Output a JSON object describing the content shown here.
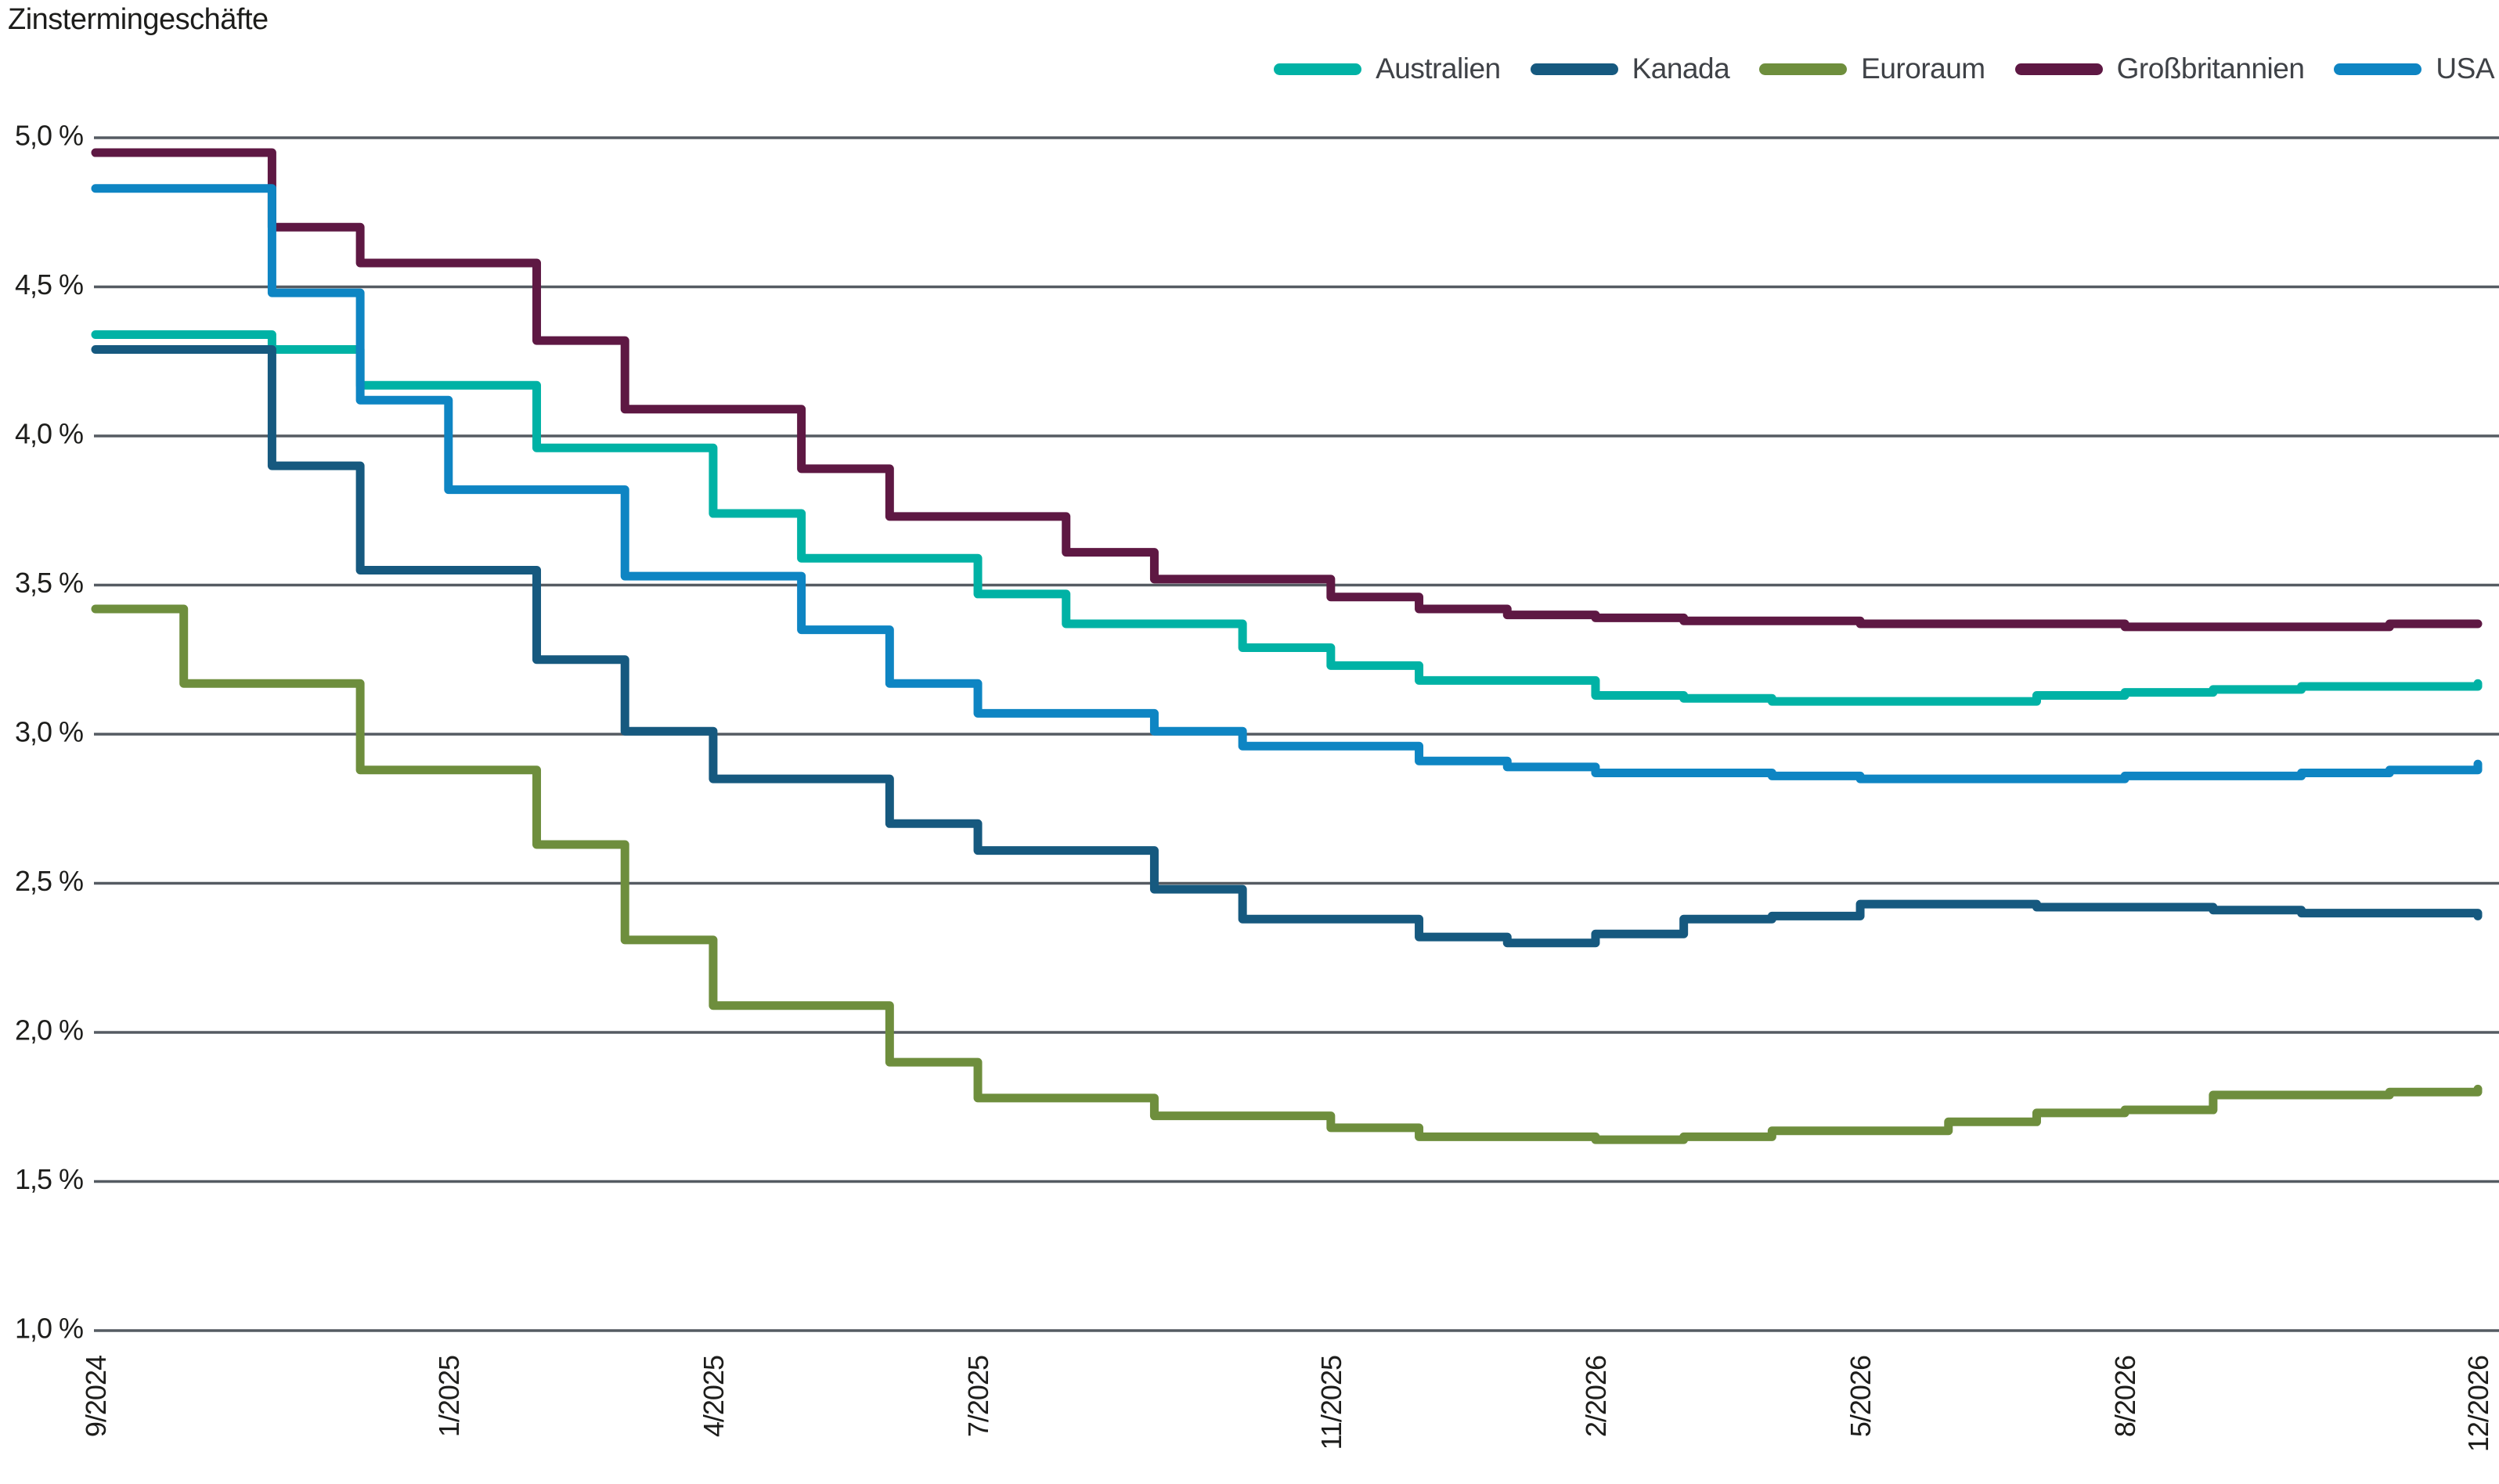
{
  "title": "Zinstermingeschäfte",
  "chart_data": {
    "type": "line",
    "variant": "step-after",
    "title": "Zinstermingeschäfte",
    "xlabel": "",
    "ylabel": "",
    "unit": "%",
    "grid": true,
    "grid_color": "#555b62",
    "background_color": "#ffffff",
    "legend_position": "top-right",
    "x_monthly": [
      "9/2024",
      "10/2024",
      "11/2024",
      "12/2024",
      "1/2025",
      "2/2025",
      "3/2025",
      "4/2025",
      "5/2025",
      "6/2025",
      "7/2025",
      "8/2025",
      "9/2025",
      "10/2025",
      "11/2025",
      "12/2025",
      "1/2026",
      "2/2026",
      "3/2026",
      "4/2026",
      "5/2026",
      "6/2026",
      "7/2026",
      "8/2026",
      "9/2026",
      "10/2026",
      "11/2026",
      "12/2026"
    ],
    "x_ticks": [
      {
        "index": 0,
        "label": "9/2024"
      },
      {
        "index": 4,
        "label": "1/2025"
      },
      {
        "index": 7,
        "label": "4/2025"
      },
      {
        "index": 10,
        "label": "7/2025"
      },
      {
        "index": 14,
        "label": "11/2025"
      },
      {
        "index": 17,
        "label": "2/2026"
      },
      {
        "index": 20,
        "label": "5/2026"
      },
      {
        "index": 23,
        "label": "8/2026"
      },
      {
        "index": 27,
        "label": "12/2026"
      }
    ],
    "y_axis": {
      "min": 1.0,
      "max": 5.0,
      "step": 0.5,
      "ticks": [
        {
          "value": 5.0,
          "label": "5,0 %"
        },
        {
          "value": 4.5,
          "label": "4,5 %"
        },
        {
          "value": 4.0,
          "label": "4,0 %"
        },
        {
          "value": 3.5,
          "label": "3,5 %"
        },
        {
          "value": 3.0,
          "label": "3,0 %"
        },
        {
          "value": 2.5,
          "label": "2,5 %"
        },
        {
          "value": 2.0,
          "label": "2,0 %"
        },
        {
          "value": 1.5,
          "label": "1,5 %"
        },
        {
          "value": 1.0,
          "label": "1,0 %"
        }
      ]
    },
    "series": [
      {
        "name": "Australien",
        "color": "#00B2A5",
        "values": [
          4.34,
          4.34,
          4.29,
          4.17,
          4.17,
          3.96,
          3.96,
          3.74,
          3.59,
          3.59,
          3.47,
          3.37,
          3.37,
          3.29,
          3.23,
          3.18,
          3.18,
          3.13,
          3.12,
          3.11,
          3.11,
          3.11,
          3.13,
          3.14,
          3.15,
          3.16,
          3.16,
          3.17
        ]
      },
      {
        "name": "Kanada",
        "color": "#16597F",
        "values": [
          4.29,
          4.29,
          3.9,
          3.55,
          3.55,
          3.25,
          3.01,
          2.85,
          2.85,
          2.7,
          2.61,
          2.61,
          2.48,
          2.38,
          2.38,
          2.32,
          2.3,
          2.33,
          2.38,
          2.39,
          2.43,
          2.43,
          2.42,
          2.42,
          2.41,
          2.4,
          2.4,
          2.39
        ]
      },
      {
        "name": "Euroraum",
        "color": "#6E8E3D",
        "values": [
          3.42,
          3.17,
          3.17,
          2.88,
          2.88,
          2.63,
          2.31,
          2.09,
          2.09,
          1.9,
          1.78,
          1.78,
          1.72,
          1.72,
          1.68,
          1.65,
          1.65,
          1.64,
          1.65,
          1.67,
          1.67,
          1.7,
          1.73,
          1.74,
          1.79,
          1.79,
          1.8,
          1.81
        ]
      },
      {
        "name": "Großbritannien",
        "color": "#5E1843",
        "values": [
          4.95,
          4.95,
          4.7,
          4.58,
          4.58,
          4.32,
          4.09,
          4.09,
          3.89,
          3.73,
          3.73,
          3.61,
          3.52,
          3.52,
          3.46,
          3.42,
          3.4,
          3.39,
          3.38,
          3.38,
          3.37,
          3.37,
          3.37,
          3.36,
          3.36,
          3.36,
          3.37,
          3.37
        ]
      },
      {
        "name": "USA",
        "color": "#0E85C3",
        "values": [
          4.83,
          4.83,
          4.48,
          4.12,
          3.82,
          3.82,
          3.53,
          3.53,
          3.35,
          3.17,
          3.07,
          3.07,
          3.01,
          2.96,
          2.96,
          2.91,
          2.89,
          2.87,
          2.87,
          2.86,
          2.85,
          2.85,
          2.85,
          2.86,
          2.86,
          2.87,
          2.88,
          2.9
        ]
      }
    ]
  }
}
